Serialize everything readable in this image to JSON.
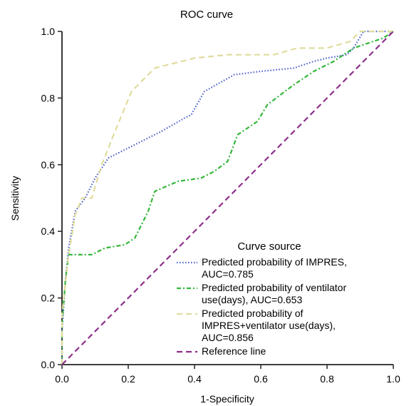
{
  "chart_data": {
    "type": "line",
    "title": "ROC curve",
    "xlabel": "1-Specificity",
    "ylabel": "Sensitivity",
    "xlim": [
      0,
      1
    ],
    "ylim": [
      0,
      1
    ],
    "x_ticks": [
      "0.0",
      "0.2",
      "0.4",
      "0.6",
      "0.8",
      "1.0"
    ],
    "y_ticks": [
      "0.0",
      "0.2",
      "0.4",
      "0.6",
      "0.8",
      "1.0"
    ],
    "grid": false,
    "legend": {
      "title": "Curve source",
      "position": "bottom-right",
      "entries": [
        {
          "lines": [
            "Predicted probability of IMPRES,",
            "AUC=0.785"
          ],
          "color": "#4a5fc9",
          "dash": "dotted"
        },
        {
          "lines": [
            "Predicted probability of ventilator",
            "use(days), AUC=0.653"
          ],
          "color": "#33b73a",
          "dash": "dash-dot"
        },
        {
          "lines": [
            "Predicted probability of",
            "IMPRES+ventilator use(days),",
            "AUC=0.856"
          ],
          "color": "#e0dc9e",
          "dash": "dashed"
        },
        {
          "lines": [
            "Reference line"
          ],
          "color": "#8e2f8c",
          "dash": "dashed"
        }
      ]
    },
    "series": [
      {
        "color": "#4a5fc9",
        "points": [
          [
            0,
            0
          ],
          [
            0,
            0.1
          ],
          [
            0.01,
            0.25
          ],
          [
            0.02,
            0.35
          ],
          [
            0.04,
            0.46
          ],
          [
            0.07,
            0.5
          ],
          [
            0.1,
            0.56
          ],
          [
            0.14,
            0.62
          ],
          [
            0.2,
            0.65
          ],
          [
            0.3,
            0.7
          ],
          [
            0.37,
            0.74
          ],
          [
            0.39,
            0.75
          ],
          [
            0.43,
            0.82
          ],
          [
            0.52,
            0.87
          ],
          [
            0.6,
            0.88
          ],
          [
            0.7,
            0.89
          ],
          [
            0.76,
            0.91
          ],
          [
            0.8,
            0.92
          ],
          [
            0.86,
            0.93
          ],
          [
            0.88,
            0.95
          ],
          [
            0.91,
            1
          ],
          [
            0.96,
            1
          ],
          [
            1,
            1
          ]
        ]
      },
      {
        "color": "#33b73a",
        "points": [
          [
            0,
            0
          ],
          [
            0,
            0.12
          ],
          [
            0.01,
            0.25
          ],
          [
            0.02,
            0.33
          ],
          [
            0.09,
            0.33
          ],
          [
            0.13,
            0.35
          ],
          [
            0.19,
            0.36
          ],
          [
            0.22,
            0.38
          ],
          [
            0.26,
            0.46
          ],
          [
            0.28,
            0.52
          ],
          [
            0.35,
            0.55
          ],
          [
            0.42,
            0.56
          ],
          [
            0.46,
            0.58
          ],
          [
            0.5,
            0.61
          ],
          [
            0.53,
            0.69
          ],
          [
            0.59,
            0.73
          ],
          [
            0.62,
            0.78
          ],
          [
            0.7,
            0.84
          ],
          [
            0.76,
            0.88
          ],
          [
            0.82,
            0.91
          ],
          [
            0.88,
            0.95
          ],
          [
            0.94,
            0.97
          ],
          [
            0.97,
            0.98
          ],
          [
            1,
            1
          ]
        ]
      },
      {
        "color": "#e0dc9e",
        "points": [
          [
            0,
            0
          ],
          [
            0,
            0.15
          ],
          [
            0.02,
            0.33
          ],
          [
            0.04,
            0.45
          ],
          [
            0.06,
            0.5
          ],
          [
            0.09,
            0.5
          ],
          [
            0.12,
            0.6
          ],
          [
            0.16,
            0.7
          ],
          [
            0.21,
            0.82
          ],
          [
            0.28,
            0.89
          ],
          [
            0.4,
            0.92
          ],
          [
            0.5,
            0.93
          ],
          [
            0.56,
            0.93
          ],
          [
            0.64,
            0.93
          ],
          [
            0.71,
            0.95
          ],
          [
            0.8,
            0.95
          ],
          [
            0.87,
            0.97
          ],
          [
            0.9,
            1
          ],
          [
            0.95,
            1
          ],
          [
            1,
            1
          ]
        ]
      },
      {
        "color": "#8e2f8c",
        "points": [
          [
            0,
            0
          ],
          [
            1,
            1
          ]
        ]
      }
    ]
  }
}
